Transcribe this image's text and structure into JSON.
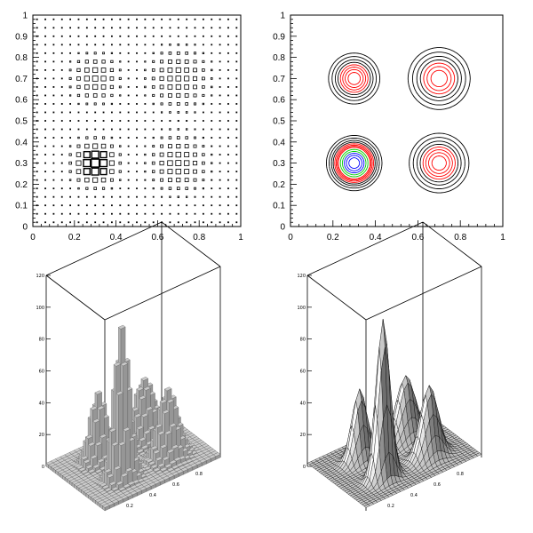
{
  "chart_data": [
    {
      "type": "box",
      "xlim": [
        0,
        1
      ],
      "ylim": [
        0,
        1
      ],
      "x_ticks": [
        "0",
        "0.2",
        "0.4",
        "0.6",
        "0.8",
        "1"
      ],
      "y_ticks": [
        "0",
        "0.1",
        "0.2",
        "0.3",
        "0.4",
        "0.5",
        "0.6",
        "0.7",
        "0.8",
        "0.9",
        "1"
      ],
      "bins": 25,
      "grid": false,
      "peaks": [
        {
          "x": 0.3,
          "y": 0.3,
          "height": 1.0,
          "sigma": 0.055
        },
        {
          "x": 0.7,
          "y": 0.3,
          "height": 0.45,
          "sigma": 0.07
        },
        {
          "x": 0.3,
          "y": 0.7,
          "height": 0.45,
          "sigma": 0.06
        },
        {
          "x": 0.7,
          "y": 0.7,
          "height": 0.4,
          "sigma": 0.075
        }
      ]
    },
    {
      "type": "contour",
      "xlim": [
        0,
        1
      ],
      "ylim": [
        0,
        1
      ],
      "x_ticks": [
        "0",
        "0.2",
        "0.4",
        "0.6",
        "0.8",
        "1"
      ],
      "y_ticks": [
        "0",
        "0.1",
        "0.2",
        "0.3",
        "0.4",
        "0.5",
        "0.6",
        "0.7",
        "0.8",
        "0.9",
        "1"
      ],
      "contour_levels": [
        0.06,
        0.1,
        0.15,
        0.2,
        0.25,
        0.3,
        0.35,
        0.4,
        0.5,
        0.6,
        0.7,
        0.8,
        0.9
      ],
      "level_colors": [
        "#000000",
        "#000000",
        "#000000",
        "#000000",
        "#ff0000",
        "#ff0000",
        "#ff0000",
        "#ff0000",
        "#00cc00",
        "#00cc00",
        "#0000ff",
        "#0000ff",
        "#0000ff"
      ]
    },
    {
      "type": "lego",
      "xlim": [
        0,
        1
      ],
      "ylim": [
        0,
        1
      ],
      "zlim": [
        0,
        120
      ],
      "z_ticks": [
        "0",
        "20",
        "40",
        "60",
        "80",
        "100",
        "120"
      ],
      "x_ticks": [
        "0.2",
        "0.4",
        "0.6",
        "0.8"
      ],
      "fill_color": "#b0b0b0"
    },
    {
      "type": "surface",
      "xlim": [
        0,
        1
      ],
      "ylim": [
        0,
        1
      ],
      "zlim": [
        0,
        120
      ],
      "z_ticks": [
        "0",
        "20",
        "40",
        "60",
        "80",
        "100",
        "120"
      ],
      "x_ticks": [
        "0.2",
        "0.4",
        "0.6",
        "0.8"
      ],
      "fill_color": "#c8c8c8"
    }
  ]
}
